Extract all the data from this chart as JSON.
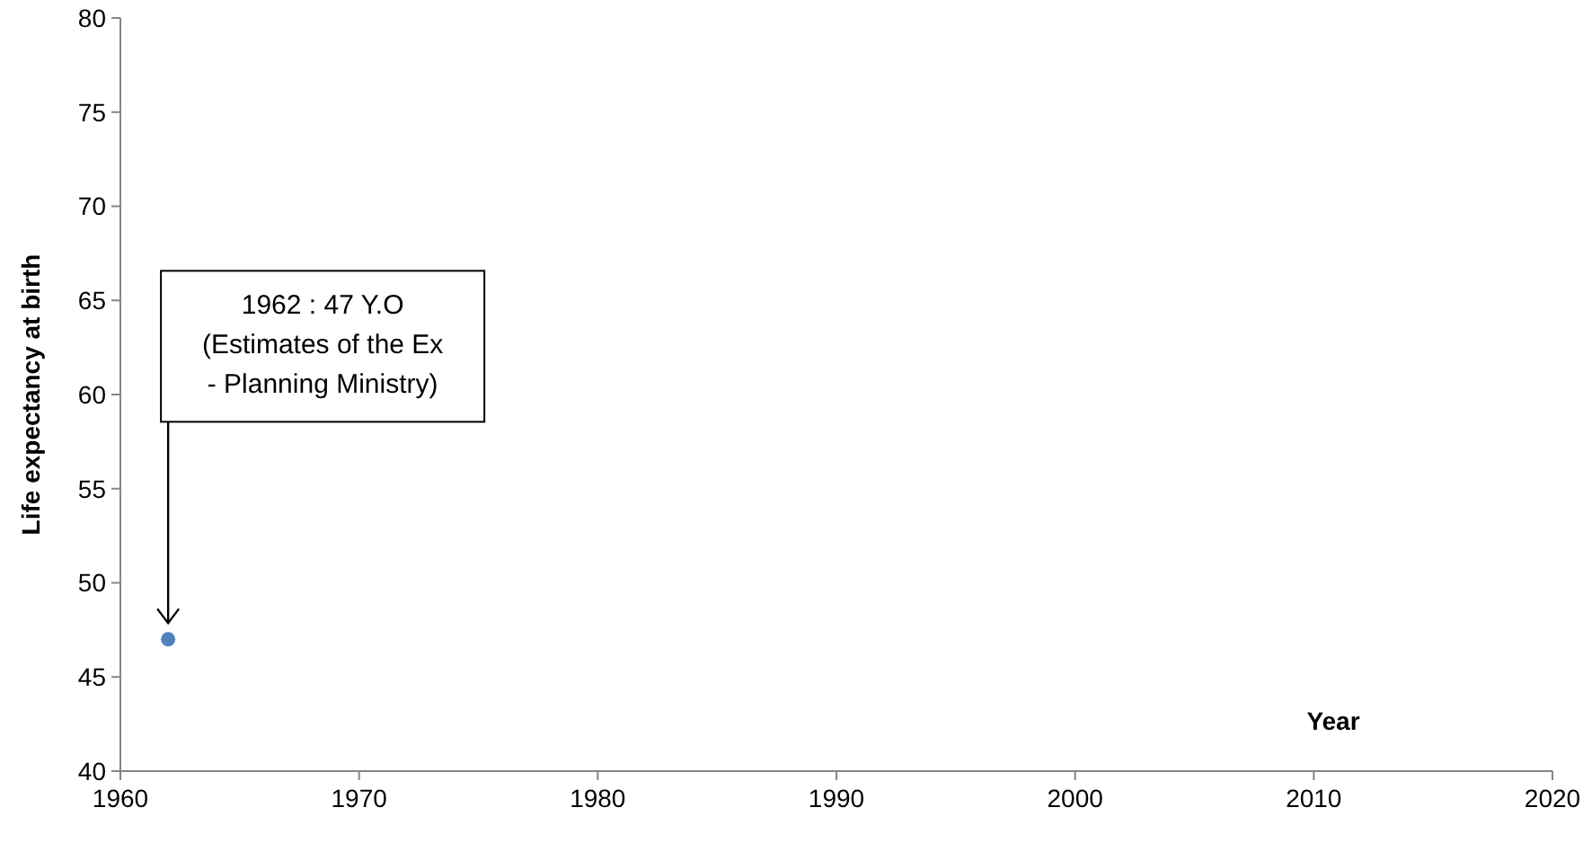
{
  "chart_data": {
    "type": "scatter",
    "xlabel": "Year",
    "ylabel": "Life expectancy at birth",
    "x": [
      1962
    ],
    "values": [
      47
    ],
    "color": "#4f81bd",
    "marker": "circle",
    "grid": false,
    "xlim": [
      1960,
      2020
    ],
    "xticks": [
      1960,
      1970,
      1980,
      1990,
      2000,
      2010,
      2020
    ],
    "ylim": [
      40,
      80
    ],
    "yticks": [
      40,
      45,
      50,
      55,
      60,
      65,
      70,
      75,
      80
    ],
    "annotations": [
      "1962 : 47 Y.O\n(Estimates of the Ex\n- Planning Ministry)"
    ]
  }
}
